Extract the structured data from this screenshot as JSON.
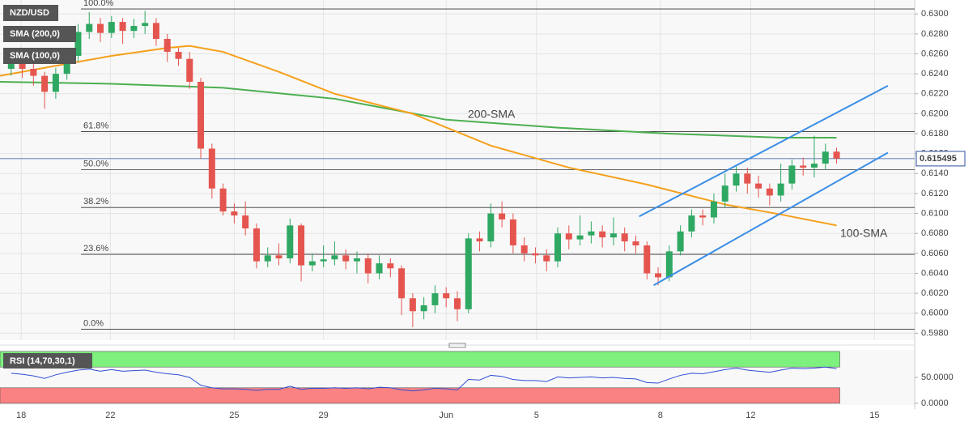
{
  "chart_data": [
    {
      "type": "candlestick",
      "symbol": "NZD/USD",
      "xlim": [
        -1,
        81
      ],
      "xticks": [
        {
          "value": 0.9,
          "label": "18"
        },
        {
          "value": 8.9,
          "label": "22"
        },
        {
          "value": 20,
          "label": "25"
        },
        {
          "value": 28,
          "label": "29"
        },
        {
          "value": 39,
          "label": "Jun"
        },
        {
          "value": 47.1,
          "label": "5"
        },
        {
          "value": 58.2,
          "label": "8"
        },
        {
          "value": 66.3,
          "label": "12"
        },
        {
          "value": 77.4,
          "label": "15"
        }
      ],
      "ylim": [
        0.5973,
        0.6314
      ],
      "yticks": [
        {
          "value": 0.63,
          "label": "0.6300"
        },
        {
          "value": 0.628,
          "label": "0.6280"
        },
        {
          "value": 0.626,
          "label": "0.6260"
        },
        {
          "value": 0.624,
          "label": "0.6240"
        },
        {
          "value": 0.622,
          "label": "0.6220"
        },
        {
          "value": 0.62,
          "label": "0.6200"
        },
        {
          "value": 0.618,
          "label": "0.6180"
        },
        {
          "value": 0.616,
          "label": "0.6160"
        },
        {
          "value": 0.614,
          "label": "0.6140"
        },
        {
          "value": 0.612,
          "label": "0.6120"
        },
        {
          "value": 0.61,
          "label": "0.6100"
        },
        {
          "value": 0.608,
          "label": "0.6080"
        },
        {
          "value": 0.606,
          "label": "0.6060"
        },
        {
          "value": 0.604,
          "label": "0.6040"
        },
        {
          "value": 0.602,
          "label": "0.6020"
        },
        {
          "value": 0.6,
          "label": "0.6000"
        },
        {
          "value": 0.598,
          "label": "0.5980"
        }
      ],
      "grid": true,
      "up_color": "#2ea862",
      "down_color": "#e5554f",
      "open": [
        0.6245,
        0.625,
        0.6245,
        0.6238,
        0.6222,
        0.624,
        0.6258,
        0.6282,
        0.629,
        0.6281,
        0.6292,
        0.6283,
        0.6288,
        0.6291,
        0.6275,
        0.6262,
        0.6255,
        0.6232,
        0.6165,
        0.6125,
        0.6102,
        0.6098,
        0.6085,
        0.6052,
        0.6058,
        0.6055,
        0.6088,
        0.6048,
        0.6052,
        0.6054,
        0.6058,
        0.6052,
        0.6055,
        0.604,
        0.605,
        0.6045,
        0.6015,
        0.6002,
        0.6008,
        0.602,
        0.6015,
        0.6004,
        0.6075,
        0.6072,
        0.61,
        0.6094,
        0.6068,
        0.606,
        0.6058,
        0.6052,
        0.608,
        0.6074,
        0.6078,
        0.6082,
        0.6076,
        0.608,
        0.6072,
        0.6068,
        0.604,
        0.6036,
        0.6062,
        0.6082,
        0.6098,
        0.6096,
        0.6112,
        0.6128,
        0.614,
        0.613,
        0.6125,
        0.6118,
        0.613,
        0.6148,
        0.6146,
        0.615,
        0.6162
      ],
      "high": [
        0.6258,
        0.6256,
        0.6252,
        0.6242,
        0.6246,
        0.6262,
        0.629,
        0.6302,
        0.6296,
        0.6298,
        0.6296,
        0.6295,
        0.6303,
        0.6296,
        0.628,
        0.6266,
        0.6262,
        0.6236,
        0.617,
        0.613,
        0.611,
        0.6112,
        0.609,
        0.6066,
        0.607,
        0.6095,
        0.609,
        0.606,
        0.6068,
        0.6072,
        0.6064,
        0.6062,
        0.606,
        0.6058,
        0.6055,
        0.6048,
        0.602,
        0.6016,
        0.6028,
        0.6026,
        0.6022,
        0.608,
        0.6082,
        0.611,
        0.6112,
        0.61,
        0.6076,
        0.6066,
        0.6064,
        0.6086,
        0.6088,
        0.6098,
        0.6092,
        0.6088,
        0.6096,
        0.6086,
        0.6078,
        0.6072,
        0.6046,
        0.6068,
        0.6088,
        0.6104,
        0.6104,
        0.612,
        0.614,
        0.6148,
        0.6146,
        0.6138,
        0.613,
        0.615,
        0.6154,
        0.6156,
        0.6178,
        0.617,
        0.6166
      ],
      "low": [
        0.6238,
        0.6236,
        0.6228,
        0.6205,
        0.6215,
        0.6234,
        0.6252,
        0.6275,
        0.6272,
        0.6276,
        0.627,
        0.6276,
        0.628,
        0.6268,
        0.6252,
        0.6248,
        0.6225,
        0.6155,
        0.6115,
        0.6098,
        0.609,
        0.6078,
        0.6045,
        0.6046,
        0.6048,
        0.605,
        0.6032,
        0.6042,
        0.6046,
        0.6048,
        0.6044,
        0.604,
        0.603,
        0.6034,
        0.6036,
        0.5998,
        0.5986,
        0.5994,
        0.6,
        0.6006,
        0.5992,
        0.6,
        0.6062,
        0.6066,
        0.6086,
        0.606,
        0.6052,
        0.605,
        0.6042,
        0.6046,
        0.6064,
        0.6068,
        0.607,
        0.6066,
        0.6068,
        0.6062,
        0.606,
        0.6034,
        0.6028,
        0.6032,
        0.6058,
        0.6076,
        0.6088,
        0.609,
        0.6106,
        0.6122,
        0.612,
        0.6116,
        0.6108,
        0.6112,
        0.6124,
        0.6138,
        0.6136,
        0.6144,
        0.615
      ],
      "close": [
        0.625,
        0.6245,
        0.6238,
        0.6222,
        0.624,
        0.6258,
        0.6282,
        0.629,
        0.6281,
        0.6292,
        0.6283,
        0.6288,
        0.6291,
        0.6275,
        0.6262,
        0.6255,
        0.6232,
        0.6165,
        0.6125,
        0.6102,
        0.6098,
        0.6085,
        0.6052,
        0.6058,
        0.6055,
        0.6088,
        0.6048,
        0.6052,
        0.6054,
        0.6058,
        0.6052,
        0.6055,
        0.604,
        0.605,
        0.6045,
        0.6015,
        0.6002,
        0.6008,
        0.602,
        0.6015,
        0.6004,
        0.6075,
        0.6072,
        0.61,
        0.6094,
        0.6068,
        0.606,
        0.6058,
        0.6052,
        0.608,
        0.6074,
        0.6078,
        0.6082,
        0.6076,
        0.608,
        0.6072,
        0.6068,
        0.604,
        0.6036,
        0.6062,
        0.6082,
        0.6098,
        0.6096,
        0.6112,
        0.6128,
        0.614,
        0.613,
        0.6125,
        0.6118,
        0.613,
        0.6148,
        0.6146,
        0.615,
        0.6162,
        0.6155
      ],
      "series": [
        {
          "name": "SMA (200,0)",
          "color": "#4caf50",
          "x": [
            -1,
            9,
            19,
            29,
            39,
            49,
            59,
            69,
            74
          ],
          "values": [
            0.6232,
            0.623,
            0.6226,
            0.6215,
            0.6194,
            0.6186,
            0.618,
            0.6176,
            0.6176
          ]
        },
        {
          "name": "SMA (100,0)",
          "color": "#f5a01a",
          "x": [
            -1,
            4,
            9,
            14,
            16,
            19,
            24,
            29,
            36,
            43,
            50,
            57,
            64,
            69,
            74
          ],
          "values": [
            0.6238,
            0.6248,
            0.6258,
            0.6266,
            0.6268,
            0.6262,
            0.6242,
            0.622,
            0.62,
            0.6168,
            0.6146,
            0.6129,
            0.6109,
            0.6099,
            0.6088
          ]
        }
      ],
      "channel": [
        {
          "color": "#3a8ee6",
          "x": [
            56.3,
            78.6
          ],
          "values": [
            0.6097,
            0.6228
          ]
        },
        {
          "color": "#3a8ee6",
          "x": [
            57.6,
            78.6
          ],
          "values": [
            0.6028,
            0.6161
          ]
        }
      ],
      "fibonacci": [
        {
          "label": "100.0%",
          "value": 0.6305
        },
        {
          "label": "61.8%",
          "value": 0.6182
        },
        {
          "label": "50.0%",
          "value": 0.6144
        },
        {
          "label": "38.2%",
          "value": 0.6106
        },
        {
          "label": "23.6%",
          "value": 0.6059
        },
        {
          "label": "0.0%",
          "value": 0.5984
        }
      ],
      "annotations": [
        {
          "text": "200-SMA",
          "color": "#4caf50"
        },
        {
          "text": "100-SMA",
          "color": "#f5a01a"
        }
      ],
      "last_price": 0.615495
    },
    {
      "type": "line",
      "title": "RSI (14,70,30,1)",
      "xlim": [
        -1,
        81
      ],
      "ylim": [
        0,
        100
      ],
      "yticks": [
        {
          "value": 50,
          "label": "50.0000"
        },
        {
          "value": 0,
          "label": "0.0000"
        }
      ],
      "bands": [
        {
          "from": 70,
          "to": 100,
          "color": "#7ef07e"
        },
        {
          "from": 0,
          "to": 30,
          "color": "#fa8282"
        }
      ],
      "series": [
        {
          "color": "#2f4fd6",
          "values": [
            58,
            56,
            53,
            48,
            55,
            60,
            64,
            66,
            62,
            65,
            62,
            63,
            64,
            60,
            57,
            55,
            50,
            35,
            30,
            28,
            28,
            27,
            25,
            27,
            27,
            33,
            27,
            29,
            29,
            30,
            29,
            30,
            28,
            31,
            30,
            26,
            24,
            26,
            29,
            28,
            26,
            46,
            45,
            54,
            52,
            46,
            44,
            44,
            42,
            51,
            49,
            50,
            51,
            49,
            50,
            48,
            47,
            40,
            39,
            47,
            54,
            58,
            57,
            61,
            65,
            68,
            64,
            62,
            60,
            64,
            68,
            67,
            68,
            70,
            67
          ]
        }
      ]
    }
  ]
}
